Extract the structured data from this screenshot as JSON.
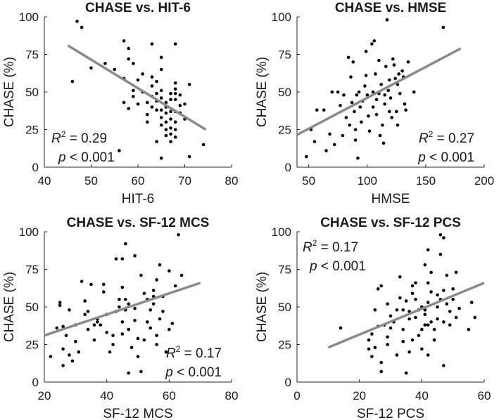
{
  "chart_data": [
    {
      "type": "scatter",
      "title": "CHASE vs. HIT-6",
      "xlabel": "HIT-6",
      "ylabel": "CHASE (%)",
      "xlim": [
        40,
        80
      ],
      "ylim": [
        0,
        100
      ],
      "xticks": [
        "40",
        "50",
        "60",
        "70",
        "80"
      ],
      "yticks": [
        "0",
        "25",
        "50",
        "75",
        "100"
      ],
      "stat_r2_prefix": "R",
      "stat_r2_sup": "2",
      "stat_r2_value": " = 0.29",
      "stat_p_prefix": "p",
      "stat_p_value": " < 0.001",
      "stat_position": "bottom-left",
      "fit": {
        "x": [
          45,
          74.5
        ],
        "y": [
          81,
          25
        ]
      },
      "points": [
        [
          46,
          57
        ],
        [
          47,
          97
        ],
        [
          48,
          93
        ],
        [
          50,
          66
        ],
        [
          53,
          69
        ],
        [
          55,
          65
        ],
        [
          56,
          11
        ],
        [
          57,
          59
        ],
        [
          57,
          84
        ],
        [
          58,
          79
        ],
        [
          58,
          72
        ],
        [
          57,
          43
        ],
        [
          58,
          39
        ],
        [
          59,
          69
        ],
        [
          59,
          51
        ],
        [
          59,
          47
        ],
        [
          60,
          58
        ],
        [
          60,
          42
        ],
        [
          61,
          62
        ],
        [
          61,
          50
        ],
        [
          62,
          43
        ],
        [
          62,
          35
        ],
        [
          62,
          30
        ],
        [
          63,
          82
        ],
        [
          63,
          60
        ],
        [
          63,
          54
        ],
        [
          63,
          47
        ],
        [
          63,
          40
        ],
        [
          64,
          57
        ],
        [
          64,
          49
        ],
        [
          64,
          44
        ],
        [
          64,
          38
        ],
        [
          64,
          17
        ],
        [
          65,
          73
        ],
        [
          65,
          65
        ],
        [
          65,
          51
        ],
        [
          65,
          46
        ],
        [
          65,
          38
        ],
        [
          65,
          33
        ],
        [
          65,
          28
        ],
        [
          65,
          6
        ],
        [
          66,
          43
        ],
        [
          66,
          40
        ],
        [
          66,
          36
        ],
        [
          66,
          30
        ],
        [
          66,
          25
        ],
        [
          66,
          21
        ],
        [
          67,
          49
        ],
        [
          67,
          45
        ],
        [
          67,
          37
        ],
        [
          67,
          32
        ],
        [
          67,
          26
        ],
        [
          67,
          22
        ],
        [
          67,
          17
        ],
        [
          68,
          82
        ],
        [
          68,
          56
        ],
        [
          68,
          52
        ],
        [
          68,
          49
        ],
        [
          68,
          45
        ],
        [
          68,
          37
        ],
        [
          68,
          30
        ],
        [
          68,
          25
        ],
        [
          68,
          20
        ],
        [
          69,
          48
        ],
        [
          69,
          41
        ],
        [
          69,
          36
        ],
        [
          70,
          42
        ],
        [
          70,
          32
        ],
        [
          71,
          55
        ],
        [
          71,
          7
        ],
        [
          74,
          15
        ]
      ]
    },
    {
      "type": "scatter",
      "title": "CHASE vs. HMSE",
      "xlabel": "HMSE",
      "ylabel": "CHASE (%)",
      "xlim": [
        40,
        200
      ],
      "ylim": [
        0,
        100
      ],
      "xticks": [
        "50",
        "100",
        "150",
        "200"
      ],
      "yticks": [
        "0",
        "25",
        "50",
        "75",
        "100"
      ],
      "stat_r2_prefix": "R",
      "stat_r2_sup": "2",
      "stat_r2_value": " = 0.27",
      "stat_p_prefix": "p",
      "stat_p_value": " < 0.001",
      "stat_position": "bottom-right",
      "fit": {
        "x": [
          40,
          180
        ],
        "y": [
          21.5,
          79
        ]
      },
      "points": [
        [
          48,
          7
        ],
        [
          52,
          25
        ],
        [
          55,
          17
        ],
        [
          57,
          38
        ],
        [
          63,
          38
        ],
        [
          65,
          11
        ],
        [
          68,
          22
        ],
        [
          70,
          50
        ],
        [
          72,
          15
        ],
        [
          75,
          50
        ],
        [
          77,
          41
        ],
        [
          79,
          21
        ],
        [
          80,
          48
        ],
        [
          82,
          33
        ],
        [
          84,
          73
        ],
        [
          85,
          28
        ],
        [
          86,
          60
        ],
        [
          87,
          43
        ],
        [
          88,
          70
        ],
        [
          89,
          37
        ],
        [
          90,
          25
        ],
        [
          90,
          18
        ],
        [
          91,
          48
        ],
        [
          92,
          6
        ],
        [
          93,
          50
        ],
        [
          94,
          40
        ],
        [
          95,
          30
        ],
        [
          96,
          44
        ],
        [
          98,
          54
        ],
        [
          99,
          77
        ],
        [
          99,
          61
        ],
        [
          100,
          48
        ],
        [
          101,
          34
        ],
        [
          102,
          24
        ],
        [
          104,
          82
        ],
        [
          105,
          50
        ],
        [
          105,
          40
        ],
        [
          106,
          84
        ],
        [
          107,
          62
        ],
        [
          108,
          45
        ],
        [
          108,
          35
        ],
        [
          110,
          71
        ],
        [
          110,
          49
        ],
        [
          111,
          21
        ],
        [
          112,
          55
        ],
        [
          113,
          28
        ],
        [
          114,
          16
        ],
        [
          115,
          48
        ],
        [
          115,
          42
        ],
        [
          116,
          67
        ],
        [
          117,
          98
        ],
        [
          118,
          51
        ],
        [
          119,
          37
        ],
        [
          119,
          58
        ],
        [
          120,
          46
        ],
        [
          121,
          33
        ],
        [
          122,
          72
        ],
        [
          123,
          68
        ],
        [
          124,
          59
        ],
        [
          125,
          37
        ],
        [
          126,
          28
        ],
        [
          126,
          55
        ],
        [
          127,
          62
        ],
        [
          128,
          49
        ],
        [
          130,
          64
        ],
        [
          131,
          60
        ],
        [
          132,
          42
        ],
        [
          133,
          38
        ],
        [
          135,
          70
        ],
        [
          140,
          50
        ],
        [
          165,
          93
        ]
      ]
    },
    {
      "type": "scatter",
      "title": "CHASE vs. SF-12 MCS",
      "xlabel": "SF-12 MCS",
      "ylabel": "CHASE (%)",
      "xlim": [
        20,
        80
      ],
      "ylim": [
        0,
        100
      ],
      "xticks": [
        "20",
        "40",
        "60",
        "80"
      ],
      "yticks": [
        "0",
        "25",
        "50",
        "75",
        "100"
      ],
      "stat_r2_prefix": "R",
      "stat_r2_sup": "2",
      "stat_r2_value": " = 0.17",
      "stat_p_prefix": "p",
      "stat_p_value": " < 0.001",
      "stat_position": "bottom-right",
      "fit": {
        "x": [
          20,
          70
        ],
        "y": [
          31,
          66
        ]
      },
      "points": [
        [
          22,
          17
        ],
        [
          24,
          36
        ],
        [
          25,
          51
        ],
        [
          25,
          53
        ],
        [
          26,
          11
        ],
        [
          26,
          22
        ],
        [
          26,
          37
        ],
        [
          27,
          31
        ],
        [
          28,
          18
        ],
        [
          28,
          48
        ],
        [
          29,
          14
        ],
        [
          30,
          27
        ],
        [
          30,
          38
        ],
        [
          31,
          20
        ],
        [
          32,
          67
        ],
        [
          33,
          45
        ],
        [
          33,
          54
        ],
        [
          34,
          47
        ],
        [
          34,
          35
        ],
        [
          35,
          65
        ],
        [
          36,
          38
        ],
        [
          36,
          28
        ],
        [
          37,
          40
        ],
        [
          37,
          42
        ],
        [
          38,
          38
        ],
        [
          39,
          65
        ],
        [
          39,
          60
        ],
        [
          40,
          33
        ],
        [
          40,
          45
        ],
        [
          41,
          20
        ],
        [
          42,
          31
        ],
        [
          42,
          25
        ],
        [
          43,
          82
        ],
        [
          43,
          47
        ],
        [
          44,
          55
        ],
        [
          44,
          50
        ],
        [
          45,
          82
        ],
        [
          45,
          63
        ],
        [
          45,
          40
        ],
        [
          45,
          32
        ],
        [
          46,
          92
        ],
        [
          46,
          55
        ],
        [
          46,
          48
        ],
        [
          47,
          6
        ],
        [
          47,
          35
        ],
        [
          47,
          52
        ],
        [
          48,
          23
        ],
        [
          49,
          41
        ],
        [
          49,
          84
        ],
        [
          49,
          49
        ],
        [
          50,
          29
        ],
        [
          50,
          17
        ],
        [
          51,
          7
        ],
        [
          51,
          71
        ],
        [
          52,
          59
        ],
        [
          52,
          28
        ],
        [
          53,
          55
        ],
        [
          53,
          40
        ],
        [
          54,
          48
        ],
        [
          54,
          36
        ],
        [
          55,
          61
        ],
        [
          55,
          57
        ],
        [
          55,
          52
        ],
        [
          56,
          68
        ],
        [
          56,
          25
        ],
        [
          56,
          31
        ],
        [
          57,
          78
        ],
        [
          57,
          42
        ],
        [
          58,
          47
        ],
        [
          58,
          57
        ],
        [
          59,
          20
        ],
        [
          60,
          74
        ],
        [
          60,
          35
        ],
        [
          61,
          39
        ],
        [
          62,
          64
        ],
        [
          63,
          98
        ],
        [
          64,
          71
        ]
      ]
    },
    {
      "type": "scatter",
      "title": "CHASE vs. SF-12 PCS",
      "xlabel": "SF-12 PCS",
      "ylabel": "CHASE (%)",
      "xlim": [
        0,
        60
      ],
      "ylim": [
        0,
        100
      ],
      "xticks": [
        "0",
        "20",
        "40",
        "60"
      ],
      "yticks": [
        "0",
        "25",
        "50",
        "75",
        "100"
      ],
      "stat_r2_prefix": "R",
      "stat_r2_sup": "2",
      "stat_r2_value": " = 0.17",
      "stat_p_prefix": "p",
      "stat_p_value": " < 0.001",
      "stat_position": "top-left",
      "fit": {
        "x": [
          10,
          60
        ],
        "y": [
          23,
          66
        ]
      },
      "points": [
        [
          14,
          36
        ],
        [
          23,
          22
        ],
        [
          23,
          28
        ],
        [
          24,
          32
        ],
        [
          24,
          17
        ],
        [
          25,
          48
        ],
        [
          25,
          23
        ],
        [
          26,
          37
        ],
        [
          26,
          62
        ],
        [
          27,
          13
        ],
        [
          27,
          64
        ],
        [
          27,
          7
        ],
        [
          28,
          38
        ],
        [
          29,
          25
        ],
        [
          29,
          30
        ],
        [
          29,
          52
        ],
        [
          30,
          44
        ],
        [
          30,
          36
        ],
        [
          31,
          40
        ],
        [
          32,
          48
        ],
        [
          32,
          18
        ],
        [
          33,
          70
        ],
        [
          33,
          56
        ],
        [
          34,
          48
        ],
        [
          34,
          35
        ],
        [
          34,
          27
        ],
        [
          35,
          6
        ],
        [
          35,
          54
        ],
        [
          36,
          47
        ],
        [
          36,
          42
        ],
        [
          36,
          20
        ],
        [
          37,
          59
        ],
        [
          37,
          28
        ],
        [
          37,
          64
        ],
        [
          38,
          66
        ],
        [
          38,
          55
        ],
        [
          38,
          43
        ],
        [
          39,
          31
        ],
        [
          39,
          48
        ],
        [
          40,
          50
        ],
        [
          40,
          35
        ],
        [
          40,
          22
        ],
        [
          41,
          78
        ],
        [
          41,
          38
        ],
        [
          41,
          48
        ],
        [
          41,
          45
        ],
        [
          42,
          88
        ],
        [
          42,
          66
        ],
        [
          42,
          53
        ],
        [
          42,
          38
        ],
        [
          42,
          18
        ],
        [
          43,
          73
        ],
        [
          43,
          60
        ],
        [
          43,
          40
        ],
        [
          44,
          35
        ],
        [
          44,
          28
        ],
        [
          45,
          58
        ],
        [
          45,
          50
        ],
        [
          45,
          42
        ],
        [
          46,
          98
        ],
        [
          46,
          85
        ],
        [
          46,
          55
        ],
        [
          47,
          96
        ],
        [
          47,
          11
        ],
        [
          47,
          61
        ],
        [
          47,
          40
        ],
        [
          48,
          71
        ],
        [
          48,
          52
        ],
        [
          49,
          47
        ],
        [
          49,
          38
        ],
        [
          50,
          62
        ],
        [
          50,
          55
        ],
        [
          51,
          73
        ],
        [
          51,
          43
        ],
        [
          52,
          49
        ],
        [
          55,
          35
        ],
        [
          56,
          53
        ],
        [
          57,
          43
        ]
      ]
    }
  ]
}
